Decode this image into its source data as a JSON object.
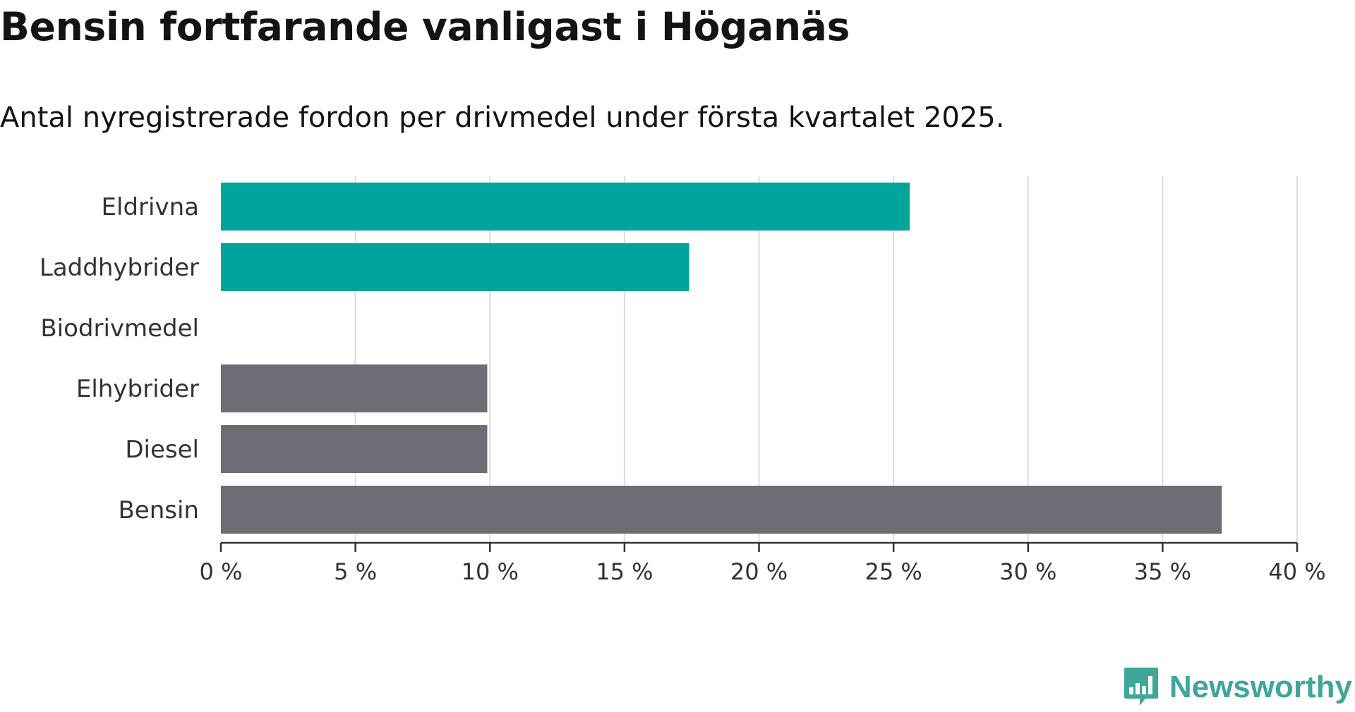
{
  "brand": {
    "name": "Newsworthy",
    "color": "#3fa69a",
    "icon": "newsworthy-logo-icon"
  },
  "colors": {
    "highlight": "#00a49a",
    "neutral": "#6e6d76",
    "grid": "#dddddd",
    "axis": "#333333"
  },
  "chart_data": {
    "type": "bar",
    "orientation": "horizontal",
    "title": "Bensin fortfarande vanligast i Höganäs",
    "subtitle": "Antal nyregistrerade fordon per drivmedel under första kvartalet 2025.",
    "categories": [
      "Eldrivna",
      "Laddhybrider",
      "Biodrivmedel",
      "Elhybrider",
      "Diesel",
      "Bensin"
    ],
    "values": [
      25.6,
      17.4,
      0,
      9.9,
      9.9,
      37.2
    ],
    "bar_colors": [
      "#00a49a",
      "#00a49a",
      "#6e6d76",
      "#6e6d76",
      "#6e6d76",
      "#6e6d76"
    ],
    "unit": "%",
    "xlim": [
      0,
      40
    ],
    "ticks": [
      0,
      5,
      10,
      15,
      20,
      25,
      30,
      35,
      40
    ],
    "tick_labels": [
      "0 %",
      "5 %",
      "10 %",
      "15 %",
      "20 %",
      "25 %",
      "30 %",
      "35 %",
      "40 %"
    ],
    "grid": true,
    "legend": "none"
  }
}
